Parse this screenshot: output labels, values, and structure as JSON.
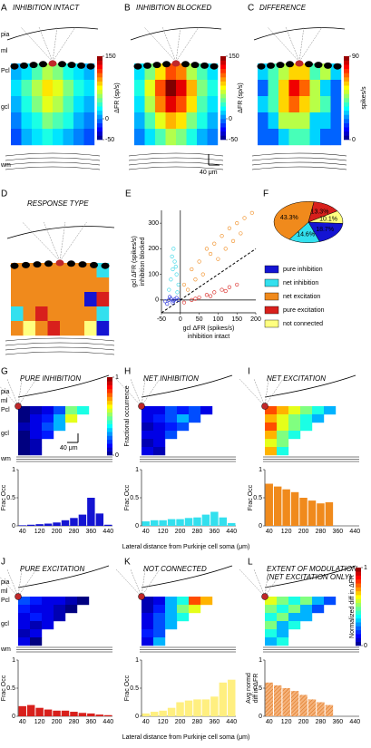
{
  "layers": [
    "pia",
    "ml",
    "Pcl",
    "gcl",
    "wm"
  ],
  "scale_bar": "40 μm",
  "top": [
    {
      "letter": "A",
      "title": "INHIBITION INTACT",
      "colorbar": {
        "label": "ΔFR (sp/s)",
        "lim": [
          -50,
          150
        ],
        "ticks": [
          -50,
          0,
          150
        ]
      },
      "grid": [
        [
          10,
          20,
          40,
          60,
          50,
          30,
          20,
          10
        ],
        [
          20,
          40,
          60,
          80,
          70,
          50,
          30,
          20
        ],
        [
          10,
          30,
          50,
          70,
          60,
          40,
          20,
          10
        ],
        [
          0,
          20,
          30,
          50,
          40,
          30,
          10,
          0
        ],
        [
          -10,
          10,
          20,
          30,
          20,
          10,
          0,
          -10
        ]
      ]
    },
    {
      "letter": "B",
      "title": "INHIBITION BLOCKED",
      "colorbar": {
        "label": "ΔFR (sp/s)",
        "lim": [
          -50,
          150
        ],
        "ticks": [
          -50,
          0,
          150
        ]
      },
      "grid": [
        [
          20,
          50,
          80,
          110,
          100,
          60,
          40,
          20
        ],
        [
          30,
          70,
          110,
          150,
          130,
          90,
          50,
          30
        ],
        [
          20,
          60,
          100,
          130,
          110,
          80,
          40,
          20
        ],
        [
          10,
          40,
          70,
          90,
          80,
          50,
          30,
          10
        ],
        [
          0,
          20,
          40,
          60,
          50,
          30,
          10,
          0
        ]
      ]
    },
    {
      "letter": "C",
      "title": "DIFFERENCE",
      "colorbar": {
        "label": "spikes/s",
        "lim": [
          0,
          90
        ],
        "ticks": [
          0,
          90
        ]
      },
      "grid": [
        [
          30,
          40,
          50,
          60,
          60,
          40,
          50,
          30
        ],
        [
          20,
          40,
          60,
          80,
          70,
          50,
          30,
          20
        ],
        [
          30,
          40,
          60,
          70,
          60,
          50,
          40,
          20
        ],
        [
          20,
          30,
          50,
          50,
          50,
          30,
          30,
          20
        ],
        [
          20,
          20,
          30,
          40,
          40,
          30,
          20,
          20
        ]
      ]
    }
  ],
  "D": {
    "letter": "D",
    "title": "RESPONSE TYPE",
    "grid": [
      [
        2,
        2,
        2,
        2,
        2,
        2,
        2,
        1
      ],
      [
        2,
        2,
        2,
        2,
        2,
        2,
        2,
        2
      ],
      [
        2,
        2,
        2,
        2,
        2,
        2,
        0,
        3
      ],
      [
        1,
        2,
        3,
        2,
        2,
        2,
        2,
        1
      ],
      [
        2,
        4,
        2,
        3,
        2,
        2,
        4,
        0
      ]
    ]
  },
  "E": {
    "letter": "E",
    "type": "scatter",
    "xlabel": [
      "gcl ΔFR (spikes/s)",
      "inhibition intact"
    ],
    "ylabel": [
      "gcl ΔFR (spikes/s)",
      "inhibition blocked"
    ],
    "xlim": [
      -50,
      200
    ],
    "xticks": [
      -50,
      0,
      50,
      100,
      150,
      200
    ],
    "ylim": [
      -50,
      350
    ],
    "yticks": [
      0,
      100,
      200,
      300
    ],
    "series": [
      {
        "color": "#1f2bd8",
        "x": [
          -40,
          -30,
          -25,
          -20,
          -15,
          -10,
          -35,
          -5,
          -28,
          -18
        ],
        "y": [
          -5,
          0,
          5,
          -10,
          2,
          8,
          -15,
          0,
          12,
          -3
        ]
      },
      {
        "color": "#33d6e6",
        "x": [
          -30,
          -25,
          -20,
          -15,
          -10,
          -5,
          -22,
          -12,
          -8,
          -18
        ],
        "y": [
          40,
          80,
          120,
          150,
          100,
          60,
          170,
          130,
          30,
          200
        ]
      },
      {
        "color": "#f08a1c",
        "x": [
          10,
          30,
          50,
          70,
          90,
          110,
          130,
          150,
          170,
          190,
          40,
          80,
          120,
          160,
          60,
          100,
          140,
          20
        ],
        "y": [
          60,
          120,
          150,
          200,
          220,
          250,
          280,
          300,
          320,
          340,
          80,
          180,
          200,
          260,
          100,
          160,
          230,
          40
        ]
      },
      {
        "color": "#d8201c",
        "x": [
          10,
          30,
          50,
          70,
          90,
          110,
          130,
          150,
          40,
          80,
          120
        ],
        "y": [
          -10,
          0,
          10,
          20,
          30,
          40,
          50,
          60,
          5,
          15,
          35
        ]
      }
    ]
  },
  "F": {
    "letter": "F",
    "type": "pie",
    "categories": [
      "pure inhibition",
      "net inhibition",
      "net excitation",
      "pure excitation",
      "not connected"
    ],
    "colors": [
      "#1414d2",
      "#33e0ee",
      "#f08a1c",
      "#d8201c",
      "#ffff80"
    ],
    "values": [
      18.7,
      14.6,
      43.3,
      13.3,
      10.1
    ],
    "value_labels": [
      "18.7%",
      "14.6%",
      "43.3%",
      "13.3%",
      "10.1%"
    ]
  },
  "lower": {
    "xlabel": "Lateral distance from Purkinje cell soma (μm)",
    "categories": [
      40,
      null,
      120,
      null,
      200,
      null,
      280,
      null,
      360,
      null,
      440
    ],
    "ylim": [
      0,
      1
    ],
    "yticks": [
      0,
      0.5,
      1
    ],
    "colorbars": [
      {
        "label": "Fractional occurrence",
        "lim": [
          0,
          1
        ],
        "ticks": [
          0,
          1
        ]
      },
      {
        "label": "Normalized diff in ΔFR",
        "lim": [
          0,
          1
        ],
        "ticks": [
          0,
          1
        ]
      }
    ],
    "panels": [
      {
        "letter": "G",
        "title": [
          "PURE INHIBITION"
        ],
        "ylabel": [
          "Frac Occ"
        ],
        "color": "#1414d2",
        "values": [
          0.01,
          0.02,
          0.03,
          0.04,
          0.06,
          0.1,
          0.14,
          0.2,
          0.5,
          0.22,
          0.02
        ],
        "grid": [
          [
            0,
            0.05,
            0.1,
            0.2,
            0.5,
            0.4
          ],
          [
            0,
            0.1,
            0.15,
            0.3,
            0.6,
            null
          ],
          [
            0.05,
            0.1,
            0.2,
            0.3,
            null,
            null
          ],
          [
            0,
            0.1,
            0.15,
            null,
            null,
            null
          ],
          [
            0,
            0.05,
            null,
            null,
            null,
            null
          ],
          [
            0,
            0.05,
            null,
            null,
            null,
            null
          ]
        ]
      },
      {
        "letter": "H",
        "title": [
          "NET INHIBITION"
        ],
        "ylabel": [
          "Frac Occ"
        ],
        "color": "#33e0ee",
        "values": [
          0.08,
          0.1,
          0.1,
          0.12,
          0.12,
          0.14,
          0.15,
          0.2,
          0.25,
          0.15,
          0.05
        ],
        "grid": [
          [
            0.1,
            0.1,
            0.2,
            0.15,
            0.2,
            0.1
          ],
          [
            0.1,
            0.15,
            0.2,
            0.3,
            0.2,
            null
          ],
          [
            0.05,
            0.1,
            0.15,
            0.2,
            null,
            null
          ],
          [
            0.1,
            0.1,
            0.2,
            null,
            null,
            null
          ],
          [
            0.05,
            0.1,
            null,
            null,
            null,
            null
          ],
          [
            0.1,
            0.05,
            null,
            null,
            null,
            null
          ]
        ]
      },
      {
        "letter": "I",
        "title": [
          "NET EXCITATION"
        ],
        "ylabel": [
          "Frac Occ"
        ],
        "color": "#f08a1c",
        "values": [
          0.75,
          0.7,
          0.65,
          0.6,
          0.5,
          0.45,
          0.4,
          0.42,
          0,
          0,
          0
        ],
        "grid": [
          [
            0.8,
            0.7,
            0.6,
            0.5,
            0.4,
            0.3
          ],
          [
            0.7,
            0.6,
            0.5,
            0.4,
            0.3,
            null
          ],
          [
            0.8,
            0.6,
            0.5,
            0.4,
            null,
            null
          ],
          [
            0.7,
            0.5,
            0.4,
            null,
            null,
            null
          ],
          [
            0.6,
            0.5,
            null,
            null,
            null,
            null
          ],
          [
            0.7,
            0.4,
            null,
            null,
            null,
            null
          ]
        ]
      },
      {
        "letter": "J",
        "title": [
          "PURE EXCITATION"
        ],
        "ylabel": [
          "Frac Occ"
        ],
        "color": "#d8201c",
        "values": [
          0.18,
          0.2,
          0.15,
          0.12,
          0.1,
          0.1,
          0.08,
          0.06,
          0.05,
          0.03,
          0.02
        ],
        "grid": [
          [
            0.2,
            0.15,
            0.1,
            0.1,
            0.05,
            0
          ],
          [
            0.15,
            0.1,
            0.1,
            0.05,
            0,
            null
          ],
          [
            0.1,
            0.15,
            0.1,
            0.05,
            null,
            null
          ],
          [
            0.1,
            0.05,
            0.1,
            null,
            null,
            null
          ],
          [
            0.05,
            0.1,
            null,
            null,
            null,
            null
          ],
          [
            0.1,
            0,
            null,
            null,
            null,
            null
          ]
        ]
      },
      {
        "letter": "K",
        "title": [
          "NOT CONNECTED"
        ],
        "ylabel": [
          "Frac Occ"
        ],
        "color": "#ffef80",
        "values": [
          0.05,
          0.08,
          0.1,
          0.15,
          0.25,
          0.28,
          0.3,
          0.3,
          0.35,
          0.6,
          0.65
        ],
        "grid": [
          [
            0.05,
            0.1,
            0.3,
            0.4,
            0.8,
            0.7
          ],
          [
            0.05,
            0.15,
            0.3,
            0.5,
            0.6,
            null
          ],
          [
            0.1,
            0.2,
            0.3,
            0.4,
            null,
            null
          ],
          [
            0.1,
            0.2,
            0.3,
            null,
            null,
            null
          ],
          [
            0.15,
            0.2,
            null,
            null,
            null,
            null
          ],
          [
            0.1,
            0.3,
            null,
            null,
            null,
            null
          ]
        ]
      },
      {
        "letter": "L",
        "title": [
          "EXTENT OF MODULATION",
          "(NET EXCITATION ONLY)"
        ],
        "ylabel": [
          "Avg normd",
          "diff in ΔFR"
        ],
        "color": "#f5b27a",
        "values": [
          0.6,
          0.55,
          0.5,
          0.45,
          0.38,
          0.3,
          0.25,
          0.2,
          null,
          null,
          null
        ],
        "grid": [
          [
            0.6,
            0.5,
            0.4,
            0.5,
            0.3,
            0.2
          ],
          [
            0.5,
            0.4,
            0.5,
            0.3,
            0.2,
            null
          ],
          [
            0.4,
            0.5,
            0.3,
            0.3,
            null,
            null
          ],
          [
            0.5,
            0.3,
            0.4,
            null,
            null,
            null
          ],
          [
            0.4,
            0.3,
            null,
            null,
            null,
            null
          ],
          [
            0.3,
            0.4,
            null,
            null,
            null,
            null
          ]
        ]
      }
    ]
  }
}
